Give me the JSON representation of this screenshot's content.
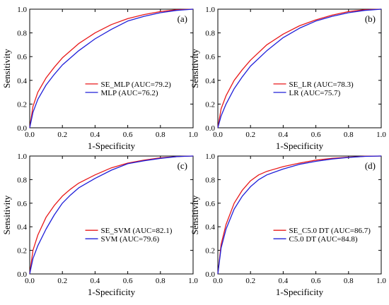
{
  "chart_data": [
    {
      "type": "line",
      "panel_label": "(a)",
      "xlabel": "1-Specificity",
      "ylabel": "Sensitivity",
      "xlim": [
        0,
        1
      ],
      "ylim": [
        0,
        1
      ],
      "xticks": [
        "0.0",
        "0.2",
        "0.4",
        "0.6",
        "0.8",
        "1.0"
      ],
      "yticks": [
        "0.0",
        "0.2",
        "0.4",
        "0.6",
        "0.8",
        "1.0"
      ],
      "legend": "center-right",
      "series": [
        {
          "name": "SE_MLP (AUC=79.2)",
          "color": "#e8191a",
          "x": [
            0,
            0.02,
            0.05,
            0.1,
            0.15,
            0.2,
            0.3,
            0.4,
            0.5,
            0.6,
            0.7,
            0.8,
            0.9,
            1.0
          ],
          "y": [
            0,
            0.18,
            0.3,
            0.42,
            0.51,
            0.59,
            0.71,
            0.8,
            0.87,
            0.92,
            0.955,
            0.98,
            0.995,
            1.0
          ]
        },
        {
          "name": "MLP (AUC=76.2)",
          "color": "#1f1fd9",
          "x": [
            0,
            0.02,
            0.05,
            0.1,
            0.15,
            0.2,
            0.3,
            0.4,
            0.5,
            0.6,
            0.7,
            0.8,
            0.9,
            1.0
          ],
          "y": [
            0,
            0.13,
            0.24,
            0.36,
            0.45,
            0.53,
            0.65,
            0.75,
            0.83,
            0.9,
            0.94,
            0.97,
            0.99,
            1.0
          ]
        }
      ]
    },
    {
      "type": "line",
      "panel_label": "(b)",
      "xlabel": "1-Specificity",
      "ylabel": "Sensitivity",
      "xlim": [
        0,
        1
      ],
      "ylim": [
        0,
        1
      ],
      "xticks": [
        "0.0",
        "0.2",
        "0.4",
        "0.6",
        "0.8",
        "1.0"
      ],
      "yticks": [
        "0.0",
        "0.2",
        "0.4",
        "0.6",
        "0.8",
        "1.0"
      ],
      "legend": "center-right",
      "series": [
        {
          "name": "SE_LR (AUC=78.3)",
          "color": "#e8191a",
          "x": [
            0,
            0.02,
            0.05,
            0.1,
            0.15,
            0.2,
            0.3,
            0.4,
            0.5,
            0.6,
            0.7,
            0.8,
            0.9,
            1.0
          ],
          "y": [
            0,
            0.16,
            0.27,
            0.4,
            0.49,
            0.57,
            0.7,
            0.79,
            0.86,
            0.91,
            0.95,
            0.98,
            0.995,
            1.0
          ]
        },
        {
          "name": "LR (AUC=75.7)",
          "color": "#1f1fd9",
          "x": [
            0,
            0.02,
            0.05,
            0.1,
            0.15,
            0.2,
            0.3,
            0.4,
            0.5,
            0.6,
            0.7,
            0.8,
            0.9,
            1.0
          ],
          "y": [
            0,
            0.1,
            0.2,
            0.33,
            0.43,
            0.52,
            0.65,
            0.76,
            0.84,
            0.9,
            0.94,
            0.97,
            0.99,
            1.0
          ]
        }
      ]
    },
    {
      "type": "line",
      "panel_label": "(c)",
      "xlabel": "1-Specificity",
      "ylabel": "Sensitivity",
      "xlim": [
        0,
        1
      ],
      "ylim": [
        0,
        1
      ],
      "xticks": [
        "0.0",
        "0.2",
        "0.4",
        "0.6",
        "0.8",
        "1.0"
      ],
      "yticks": [
        "0.0",
        "0.2",
        "0.4",
        "0.6",
        "0.8",
        "1.0"
      ],
      "legend": "center-right",
      "series": [
        {
          "name": "SE_SVM (AUC=82.1)",
          "color": "#e8191a",
          "x": [
            0,
            0.02,
            0.05,
            0.1,
            0.15,
            0.2,
            0.25,
            0.3,
            0.4,
            0.5,
            0.6,
            0.7,
            0.8,
            0.9,
            1.0
          ],
          "y": [
            0,
            0.2,
            0.33,
            0.48,
            0.58,
            0.66,
            0.72,
            0.77,
            0.84,
            0.9,
            0.94,
            0.965,
            0.985,
            0.995,
            1.0
          ]
        },
        {
          "name": "SVM (AUC=79.6)",
          "color": "#1f1fd9",
          "x": [
            0,
            0.02,
            0.05,
            0.1,
            0.15,
            0.2,
            0.25,
            0.3,
            0.4,
            0.5,
            0.6,
            0.7,
            0.8,
            0.9,
            1.0
          ],
          "y": [
            0,
            0.13,
            0.24,
            0.38,
            0.5,
            0.6,
            0.67,
            0.73,
            0.81,
            0.88,
            0.935,
            0.96,
            0.98,
            0.995,
            1.0
          ]
        }
      ]
    },
    {
      "type": "line",
      "panel_label": "(d)",
      "xlabel": "1-Specificity",
      "ylabel": "Sensitivity",
      "xlim": [
        0,
        1
      ],
      "ylim": [
        0,
        1
      ],
      "xticks": [
        "0.0",
        "0.2",
        "0.4",
        "0.6",
        "0.8",
        "1.0"
      ],
      "yticks": [
        "0.0",
        "0.2",
        "0.4",
        "0.6",
        "0.8",
        "1.0"
      ],
      "legend": "center-right",
      "series": [
        {
          "name": "SE_C5.0 DT (AUC=86.7)",
          "color": "#e8191a",
          "x": [
            0,
            0.02,
            0.05,
            0.1,
            0.15,
            0.2,
            0.25,
            0.3,
            0.4,
            0.5,
            0.6,
            0.7,
            0.8,
            0.9,
            1.0
          ],
          "y": [
            0,
            0.25,
            0.42,
            0.6,
            0.71,
            0.79,
            0.84,
            0.87,
            0.91,
            0.94,
            0.965,
            0.98,
            0.99,
            0.998,
            1.0
          ]
        },
        {
          "name": "C5.0 DT (AUC=84.8)",
          "color": "#1f1fd9",
          "x": [
            0,
            0.02,
            0.05,
            0.1,
            0.15,
            0.2,
            0.25,
            0.3,
            0.4,
            0.5,
            0.6,
            0.7,
            0.8,
            0.9,
            1.0
          ],
          "y": [
            0,
            0.22,
            0.38,
            0.55,
            0.66,
            0.74,
            0.8,
            0.84,
            0.89,
            0.93,
            0.955,
            0.975,
            0.988,
            0.997,
            1.0
          ]
        }
      ]
    }
  ]
}
